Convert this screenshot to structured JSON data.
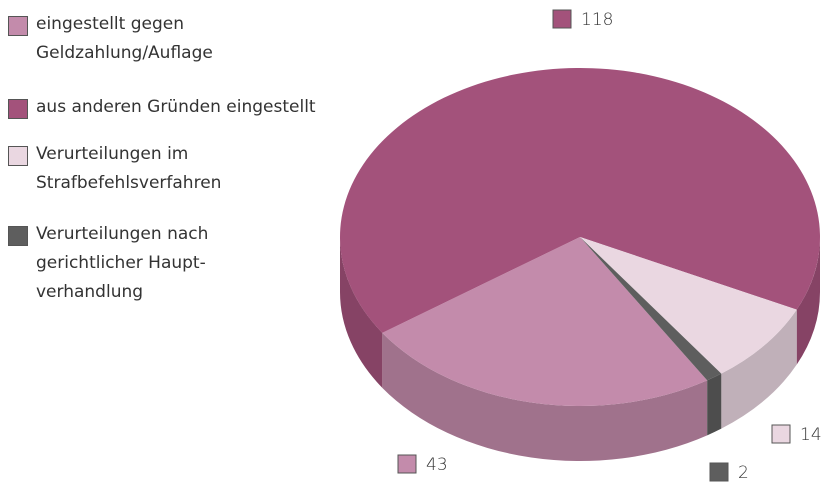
{
  "chart_data": {
    "type": "pie3d",
    "categories": [
      "eingestellt gegen Geldzahlung/Auflage",
      "aus anderen Gründen eingestellt",
      "Verurteilungen im Strafbefehlsverfahren",
      "Verurteilungen nach gerichtlicher Haupt-verhandlung"
    ],
    "values": [
      43,
      118,
      14,
      2
    ],
    "colors": [
      "#c38bab",
      "#a3527b",
      "#ead7e1",
      "#5e5e5e"
    ],
    "legend": "left"
  }
}
